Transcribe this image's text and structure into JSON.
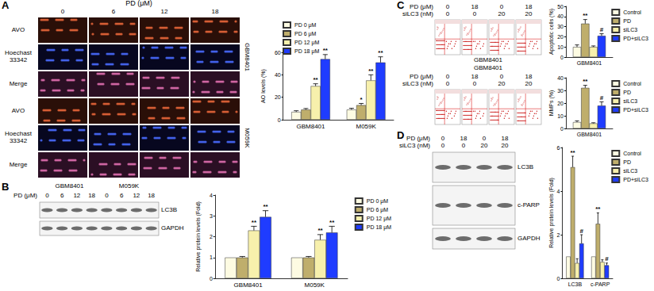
{
  "chart_data": [
    {
      "type": "bar",
      "y_label": "AO levels (%)",
      "categories": [
        "GBM8401",
        "M059K"
      ],
      "series": [
        {
          "name": "PD 0 μM",
          "color": "#fdfbe2",
          "values": [
            7,
            9
          ],
          "errors": [
            1,
            1.2
          ],
          "significance": [
            null,
            null
          ]
        },
        {
          "name": "PD 6 μM",
          "color": "#bfae6c",
          "values": [
            9,
            13
          ],
          "errors": [
            1,
            1.5
          ],
          "significance": [
            null,
            "*"
          ]
        },
        {
          "name": "PD 12 μM",
          "color": "#f7f0ac",
          "values": [
            30,
            35
          ],
          "errors": [
            2,
            5
          ],
          "significance": [
            "**",
            "**"
          ]
        },
        {
          "name": "PD 18 μM",
          "color": "#1f3cff",
          "values": [
            54,
            51
          ],
          "errors": [
            4,
            5
          ],
          "significance": [
            "**",
            "**"
          ]
        }
      ],
      "ylim": [
        0,
        60
      ],
      "yticks": [
        0,
        20,
        40,
        60
      ],
      "grid": false,
      "legend": "top"
    },
    {
      "type": "bar",
      "y_label": "Relative protein levels (Fold)",
      "categories": [
        "GBM8401",
        "M059K"
      ],
      "series": [
        {
          "name": "PD 0 μM",
          "color": "#fdfbe2",
          "values": [
            1,
            1
          ],
          "errors": [
            0,
            0
          ],
          "significance": [
            null,
            null
          ]
        },
        {
          "name": "PD 6 μM",
          "color": "#bfae6c",
          "values": [
            1,
            1
          ],
          "errors": [
            0.05,
            0.05
          ],
          "significance": [
            null,
            null
          ]
        },
        {
          "name": "PD 12 μM",
          "color": "#f7f0ac",
          "values": [
            2.3,
            1.85
          ],
          "errors": [
            0.2,
            0.25
          ],
          "significance": [
            "**",
            "**"
          ]
        },
        {
          "name": "PD 18 μM",
          "color": "#1f3cff",
          "values": [
            2.95,
            2.2
          ],
          "errors": [
            0.3,
            0.3
          ],
          "significance": [
            "**",
            "**"
          ]
        }
      ],
      "ylim": [
        0,
        4
      ],
      "yticks": [
        0,
        1,
        2,
        3,
        4
      ],
      "grid": false,
      "legend": "right"
    },
    {
      "type": "bar",
      "y_label": "Apoptotic cells (%)",
      "categories": [
        "GBM8401"
      ],
      "series": [
        {
          "name": "Control",
          "color": "#fdfbe2",
          "values": [
            10
          ],
          "errors": [
            2
          ],
          "significance": [
            null
          ]
        },
        {
          "name": "PD",
          "color": "#bfae6c",
          "values": [
            33
          ],
          "errors": [
            4
          ],
          "significance": [
            "**"
          ]
        },
        {
          "name": "siLC3",
          "color": "#f7f0ac",
          "values": [
            10
          ],
          "errors": [
            1
          ],
          "significance": [
            null
          ]
        },
        {
          "name": "PD+siLC3",
          "color": "#1f3cff",
          "values": [
            21
          ],
          "errors": [
            2
          ],
          "significance": [
            "#"
          ]
        }
      ],
      "ylim": [
        0,
        50
      ],
      "yticks": [
        0,
        10,
        20,
        30,
        40,
        50
      ],
      "grid": false,
      "legend": "right"
    },
    {
      "type": "bar",
      "y_label": "MMPs (%)",
      "categories": [
        "GBM8401"
      ],
      "series": [
        {
          "name": "Control",
          "color": "#fdfbe2",
          "values": [
            5
          ],
          "errors": [
            1
          ],
          "significance": [
            null
          ]
        },
        {
          "name": "PD",
          "color": "#bfae6c",
          "values": [
            32
          ],
          "errors": [
            2
          ],
          "significance": [
            "**"
          ]
        },
        {
          "name": "siLC3",
          "color": "#f7f0ac",
          "values": [
            4
          ],
          "errors": [
            0.5
          ],
          "significance": [
            null
          ]
        },
        {
          "name": "PD+siLC3",
          "color": "#1f3cff",
          "values": [
            18
          ],
          "errors": [
            3
          ],
          "significance": [
            "#"
          ]
        }
      ],
      "ylim": [
        0,
        40
      ],
      "yticks": [
        0,
        10,
        20,
        30,
        40
      ],
      "grid": false,
      "legend": "right"
    },
    {
      "type": "bar",
      "y_label": "Relative protein levels (Fold)",
      "categories": [
        "LC3B",
        "c-PARP"
      ],
      "series": [
        {
          "name": "Control",
          "color": "#fdfbe2",
          "values": [
            1,
            1
          ],
          "errors": [
            0,
            0
          ],
          "significance": [
            null,
            null
          ]
        },
        {
          "name": "PD",
          "color": "#bfae6c",
          "values": [
            5.1,
            2.5
          ],
          "errors": [
            0.5,
            0.5
          ],
          "significance": [
            "**",
            "**"
          ]
        },
        {
          "name": "siLC3",
          "color": "#f7f0ac",
          "values": [
            0.7,
            0.75
          ],
          "errors": [
            0.2,
            0.1
          ],
          "significance": [
            null,
            null
          ]
        },
        {
          "name": "PD+siLC3",
          "color": "#1f3cff",
          "values": [
            1.6,
            0.6
          ],
          "errors": [
            0.4,
            0.1
          ],
          "significance": [
            "#",
            "#"
          ]
        }
      ],
      "ylim": [
        0,
        6
      ],
      "yticks": [
        0,
        2,
        4,
        6
      ],
      "grid": false,
      "legend": "right"
    }
  ],
  "figure": {
    "panel_labels": [
      "A",
      "B",
      "C",
      "D"
    ],
    "microscopy": {
      "header": "PD (μM)",
      "columns": [
        "0",
        "6",
        "12",
        "18"
      ],
      "rows": [
        "AVO",
        "Hoechast 33342",
        "Merge",
        "AVO",
        "Hoechast 33342",
        "Merge"
      ],
      "cell_lines": [
        "GBM8401",
        "M059K"
      ]
    },
    "blot_B": {
      "header": "PD (μM)",
      "cell_lines": [
        "GBM8401",
        "M059K"
      ],
      "lanes": [
        "0",
        "6",
        "12",
        "18",
        "0",
        "6",
        "12",
        "18"
      ],
      "proteins": [
        "LC3B",
        "GAPDH"
      ]
    },
    "flow_C": [
      {
        "cell_line": "GBM8401",
        "conditions": [
          {
            "label": "PD (μM)",
            "lanes": [
              "0",
              "18",
              "0",
              "18"
            ]
          },
          {
            "label": "siLC3 (nM)",
            "lanes": [
              "0",
              "0",
              "20",
              "20"
            ]
          }
        ]
      },
      {
        "cell_line": "GBM8401",
        "conditions": [
          {
            "label": "PD (μM)",
            "lanes": [
              "0",
              "18",
              "0",
              "18"
            ]
          },
          {
            "label": "siLC3 (nM)",
            "lanes": [
              "0",
              "0",
              "20",
              "20"
            ]
          }
        ]
      }
    ],
    "blot_D": {
      "conditions": [
        {
          "label": "PD (μM)",
          "lanes": [
            "0",
            "18",
            "0",
            "18"
          ]
        },
        {
          "label": "siLC3 (nM)",
          "lanes": [
            "0",
            "0",
            "20",
            "20"
          ]
        }
      ],
      "proteins": [
        "LC3B",
        "c-PARP",
        "GAPDH"
      ]
    }
  }
}
